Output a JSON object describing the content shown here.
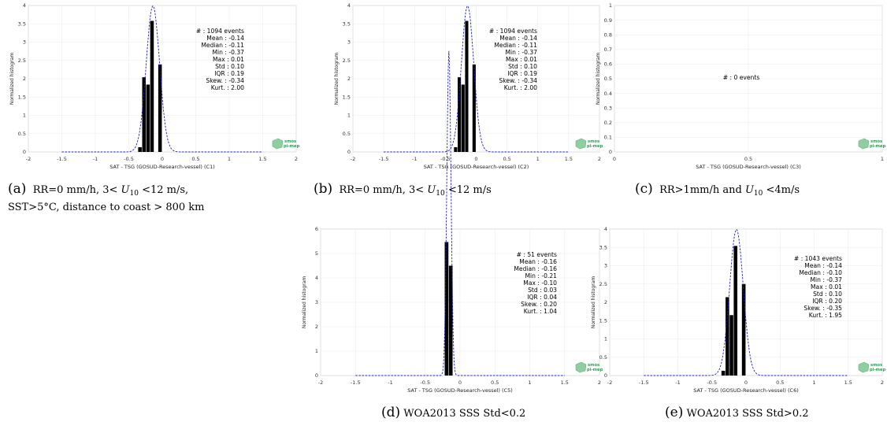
{
  "panels": [
    {
      "id": "C1",
      "letter": "(a)",
      "caption": "RR=0 mm/h, 3< U10 <12 m/s, SST>5°C, distance to coast > 800 km",
      "caption_line1": "RR=0  mm/h,  3<  ",
      "caption_u": "U",
      "caption_sub": "10",
      "caption_line1b": "  <12  m/s,",
      "caption_line2": "SST>5°C, distance to coast > 800 km",
      "logo_text": [
        "smos",
        "pi-mep"
      ],
      "stats": [
        "#  : 1094 events",
        "Mean : -0.14",
        "Median : -0.11",
        "Min : -0.37",
        "Max : 0.01",
        "Std : 0.10",
        "IQR : 0.19",
        "Skew. : -0.34",
        "Kurt. : 2.00"
      ],
      "chart_data": {
        "type": "bar",
        "xlabel": "SAT - TSG (GOSUD-Research-vessel) (C1)",
        "ylabel": "Normalized histogram",
        "xlim": [
          -2,
          2
        ],
        "ylim": [
          0,
          4
        ],
        "xticks": [
          "-2",
          "-1.5",
          "-1",
          "-0.5",
          "0",
          "0.5",
          "1",
          "1.5",
          "2"
        ],
        "yticks": [
          "0",
          "0.5",
          "1",
          "1.5",
          "2",
          "2.5",
          "3",
          "3.5",
          "4"
        ],
        "bin_width": 0.06,
        "bins": [
          {
            "x": -0.33,
            "value": 0.13
          },
          {
            "x": -0.27,
            "value": 2.04
          },
          {
            "x": -0.21,
            "value": 1.84
          },
          {
            "x": -0.15,
            "value": 3.58
          },
          {
            "x": -0.03,
            "value": 2.39
          }
        ],
        "gaussian": {
          "mean": -0.14,
          "std": 0.1,
          "xrange": [
            -1.5,
            1.5
          ],
          "style": "dashed",
          "color": "#1f1fc8"
        }
      }
    },
    {
      "id": "C2",
      "letter": "(b)",
      "caption": "RR=0 mm/h, 3< U10 <12 m/s",
      "caption_line1": "RR=0 mm/h, 3< ",
      "caption_u": "U",
      "caption_sub": "10",
      "caption_line1b": " <12 m/s",
      "caption_line2": "",
      "logo_text": [
        "smos",
        "pi-mep"
      ],
      "stats": [
        "#  : 1094 events",
        "Mean : -0.14",
        "Median : -0.11",
        "Min : -0.37",
        "Max : 0.01",
        "Std : 0.10",
        "IQR : 0.19",
        "Skew. : -0.34",
        "Kurt. : 2.00"
      ],
      "chart_data": {
        "type": "bar",
        "xlabel": "SAT - TSG (GOSUD-Research-vessel) (C2)",
        "ylabel": "Normalized histogram",
        "xlim": [
          -2,
          2
        ],
        "ylim": [
          0,
          4
        ],
        "xticks": [
          "-2",
          "-1.5",
          "-1",
          "-0.5",
          "0",
          "0.5",
          "1",
          "1.5",
          "2"
        ],
        "yticks": [
          "0",
          "0.5",
          "1",
          "1.5",
          "2",
          "2.5",
          "3",
          "3.5",
          "4"
        ],
        "bin_width": 0.06,
        "bins": [
          {
            "x": -0.33,
            "value": 0.13
          },
          {
            "x": -0.27,
            "value": 2.04
          },
          {
            "x": -0.21,
            "value": 1.84
          },
          {
            "x": -0.15,
            "value": 3.58
          },
          {
            "x": -0.03,
            "value": 2.39
          }
        ],
        "gaussian": {
          "mean": -0.14,
          "std": 0.1,
          "xrange": [
            -1.5,
            1.5
          ],
          "style": "dashed",
          "color": "#1f1fc8"
        }
      }
    },
    {
      "id": "C3",
      "letter": "(c)",
      "caption": "RR>1mm/h and U10 <4m/s",
      "caption_line1": "RR>1mm/h and ",
      "caption_u": "U",
      "caption_sub": "10",
      "caption_line1b": " <4m/s",
      "caption_line2": "",
      "logo_text": [
        "smos",
        "pi-mep"
      ],
      "stats": [
        "#  : 0 events"
      ],
      "chart_data": {
        "type": "bar",
        "xlabel": "SAT - TSG (GOSUD-Research-vessel) (C3)",
        "ylabel": "Normalized histogram",
        "xlim": [
          0,
          1
        ],
        "ylim": [
          0,
          1
        ],
        "xticks": [
          "0",
          "0.5",
          "1"
        ],
        "yticks": [
          "0",
          "0.1",
          "0.2",
          "0.3",
          "0.4",
          "0.5",
          "0.6",
          "0.7",
          "0.8",
          "0.9",
          "1"
        ],
        "bin_width": 0,
        "bins": [],
        "gaussian": null
      }
    },
    {
      "id": "C5",
      "letter": "(d)",
      "caption": "WOA2013 SSS Std<0.2",
      "caption_line1": "WOA2013 SSS Std<0.2",
      "caption_u": "",
      "caption_sub": "",
      "caption_line1b": "",
      "caption_line2": "",
      "logo_text": [
        "smos",
        "pi-mep"
      ],
      "stats": [
        "#  : 51 events",
        "Mean : -0.16",
        "Median : -0.16",
        "Min : -0.21",
        "Max : -0.10",
        "Std : 0.03",
        "IQR : 0.04",
        "Skew. : 0.20",
        "Kurt. : 1.04"
      ],
      "chart_data": {
        "type": "bar",
        "xlabel": "SAT - TSG (GOSUD-Research-vessel) (C5)",
        "ylabel": "Normalized histogram",
        "xlim": [
          -2,
          2
        ],
        "ylim": [
          0,
          6
        ],
        "xticks": [
          "-2",
          "-1.5",
          "-1",
          "-0.5",
          "0",
          "0.5",
          "1",
          "1.5",
          "2"
        ],
        "yticks": [
          "0",
          "1",
          "2",
          "3",
          "4",
          "5",
          "6"
        ],
        "bin_width": 0.06,
        "bins": [
          {
            "x": -0.19,
            "value": 5.47
          },
          {
            "x": -0.13,
            "value": 4.5
          }
        ],
        "gaussian": {
          "mean": -0.16,
          "std": 0.03,
          "xrange": [
            -1.5,
            1.5
          ],
          "style": "dashed",
          "color": "#1f1fc8"
        }
      }
    },
    {
      "id": "C6",
      "letter": "(e)",
      "caption": "WOA2013 SSS Std>0.2",
      "caption_line1": "WOA2013 SSS Std>0.2",
      "caption_u": "",
      "caption_sub": "",
      "caption_line1b": "",
      "caption_line2": "",
      "logo_text": [
        "smos",
        "pi-mep"
      ],
      "stats": [
        "#  : 1043 events",
        "Mean : -0.14",
        "Median : -0.10",
        "Min : -0.37",
        "Max : 0.01",
        "Std : 0.10",
        "IQR : 0.20",
        "Skew. : -0.35",
        "Kurt. : 1.95"
      ],
      "chart_data": {
        "type": "bar",
        "xlabel": "SAT - TSG (GOSUD-Research-vessel) (C6)",
        "ylabel": "Normalized histogram",
        "xlim": [
          -2,
          2
        ],
        "ylim": [
          0,
          4
        ],
        "xticks": [
          "-2",
          "-1.5",
          "-1",
          "-0.5",
          "0",
          "0.5",
          "1",
          "1.5",
          "2"
        ],
        "yticks": [
          "0",
          "0.5",
          "1",
          "1.5",
          "2",
          "2.5",
          "3",
          "3.5",
          "4"
        ],
        "bin_width": 0.06,
        "bins": [
          {
            "x": -0.33,
            "value": 0.13
          },
          {
            "x": -0.27,
            "value": 2.14
          },
          {
            "x": -0.21,
            "value": 1.65
          },
          {
            "x": -0.15,
            "value": 3.54
          },
          {
            "x": -0.03,
            "value": 2.5
          }
        ],
        "gaussian": {
          "mean": -0.14,
          "std": 0.1,
          "xrange": [
            -1.5,
            1.5
          ],
          "style": "dashed",
          "color": "#1f1fc8"
        }
      }
    }
  ]
}
